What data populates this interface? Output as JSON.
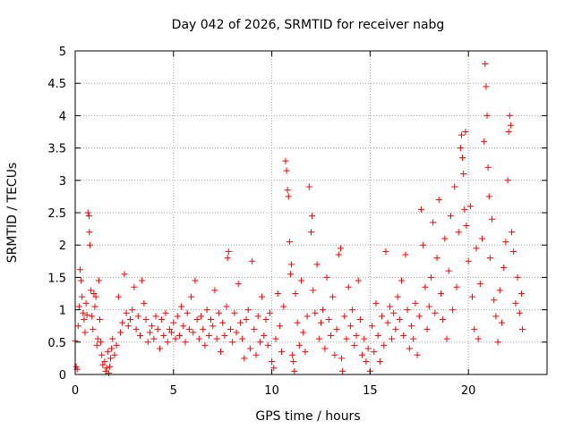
{
  "chart_data": {
    "type": "scatter",
    "title": "Day 042 of 2026, SRMTID for receiver nabg",
    "xlabel": "GPS time / hours",
    "ylabel": "SRMTID / TECUs",
    "xlim": [
      0,
      24
    ],
    "ylim": [
      0,
      5
    ],
    "x_ticks": [
      0,
      5,
      10,
      15,
      20
    ],
    "x_tick_labels": [
      "0",
      "5",
      "10",
      "15",
      "20"
    ],
    "y_ticks": [
      0,
      0.5,
      1,
      1.5,
      2,
      2.5,
      3,
      3.5,
      4,
      4.5,
      5
    ],
    "y_tick_labels": [
      "0",
      "0.5",
      "1",
      "1.5",
      "2",
      "2.5",
      "3",
      "3.5",
      "4",
      "4.5",
      "5"
    ],
    "grid": true,
    "marker": "+",
    "color": "#ff0000",
    "series": [
      {
        "name": "SRMTID",
        "points": [
          [
            0.0,
            0.52
          ],
          [
            0.05,
            0.12
          ],
          [
            0.1,
            0.08
          ],
          [
            0.15,
            0.75
          ],
          [
            0.2,
            1.05
          ],
          [
            0.25,
            1.62
          ],
          [
            0.3,
            1.45
          ],
          [
            0.35,
            1.2
          ],
          [
            0.4,
            0.95
          ],
          [
            0.45,
            0.85
          ],
          [
            0.5,
            0.65
          ],
          [
            0.55,
            1.1
          ],
          [
            0.6,
            0.92
          ],
          [
            0.65,
            2.5
          ],
          [
            0.7,
            2.45
          ],
          [
            0.72,
            2.2
          ],
          [
            0.75,
            2.0
          ],
          [
            0.8,
            1.3
          ],
          [
            0.85,
            0.9
          ],
          [
            0.9,
            0.7
          ],
          [
            0.95,
            1.25
          ],
          [
            1.0,
            1.05
          ],
          [
            1.05,
            1.2
          ],
          [
            1.1,
            0.45
          ],
          [
            1.15,
            0.55
          ],
          [
            1.2,
            1.45
          ],
          [
            1.25,
            0.85
          ],
          [
            1.3,
            0.5
          ],
          [
            1.35,
            0.3
          ],
          [
            1.4,
            0.15
          ],
          [
            1.5,
            0.2
          ],
          [
            1.55,
            0.05
          ],
          [
            1.6,
            0.1
          ],
          [
            1.65,
            0.35
          ],
          [
            1.7,
            0.02
          ],
          [
            1.75,
            0.12
          ],
          [
            1.8,
            0.25
          ],
          [
            1.85,
            0.4
          ],
          [
            1.9,
            0.55
          ],
          [
            2.0,
            0.3
          ],
          [
            2.1,
            0.45
          ],
          [
            2.2,
            1.2
          ],
          [
            2.3,
            0.65
          ],
          [
            2.4,
            0.8
          ],
          [
            2.5,
            1.55
          ],
          [
            2.6,
            0.95
          ],
          [
            2.7,
            0.75
          ],
          [
            2.8,
            0.85
          ],
          [
            2.9,
            1.0
          ],
          [
            3.0,
            1.35
          ],
          [
            3.1,
            0.7
          ],
          [
            3.2,
            0.9
          ],
          [
            3.3,
            0.6
          ],
          [
            3.4,
            1.45
          ],
          [
            3.5,
            1.1
          ],
          [
            3.6,
            0.85
          ],
          [
            3.7,
            0.5
          ],
          [
            3.8,
            0.65
          ],
          [
            3.9,
            0.75
          ],
          [
            4.0,
            0.55
          ],
          [
            4.1,
            0.9
          ],
          [
            4.2,
            0.7
          ],
          [
            4.3,
            0.4
          ],
          [
            4.4,
            0.85
          ],
          [
            4.5,
            0.6
          ],
          [
            4.6,
            0.95
          ],
          [
            4.7,
            0.5
          ],
          [
            4.8,
            0.7
          ],
          [
            4.9,
            0.65
          ],
          [
            5.0,
            0.8
          ],
          [
            5.1,
            0.55
          ],
          [
            5.2,
            0.9
          ],
          [
            5.3,
            0.6
          ],
          [
            5.4,
            1.05
          ],
          [
            5.5,
            0.75
          ],
          [
            5.6,
            0.5
          ],
          [
            5.7,
            0.95
          ],
          [
            5.8,
            0.7
          ],
          [
            5.9,
            1.2
          ],
          [
            6.0,
            0.65
          ],
          [
            6.1,
            1.45
          ],
          [
            6.2,
            0.85
          ],
          [
            6.3,
            0.55
          ],
          [
            6.4,
            0.9
          ],
          [
            6.5,
            0.7
          ],
          [
            6.6,
            0.45
          ],
          [
            6.7,
            1.0
          ],
          [
            6.8,
            0.6
          ],
          [
            6.9,
            0.85
          ],
          [
            7.0,
            0.75
          ],
          [
            7.1,
            1.3
          ],
          [
            7.2,
            0.55
          ],
          [
            7.3,
            0.95
          ],
          [
            7.4,
            0.35
          ],
          [
            7.5,
            0.8
          ],
          [
            7.6,
            0.6
          ],
          [
            7.7,
            1.05
          ],
          [
            7.75,
            1.8
          ],
          [
            7.8,
            1.9
          ],
          [
            7.9,
            0.7
          ],
          [
            8.0,
            0.5
          ],
          [
            8.1,
            0.95
          ],
          [
            8.2,
            0.65
          ],
          [
            8.3,
            1.4
          ],
          [
            8.4,
            0.8
          ],
          [
            8.5,
            0.55
          ],
          [
            8.6,
            0.25
          ],
          [
            8.7,
            0.85
          ],
          [
            8.8,
            1.0
          ],
          [
            8.9,
            0.4
          ],
          [
            9.0,
            1.75
          ],
          [
            9.1,
            0.7
          ],
          [
            9.2,
            0.3
          ],
          [
            9.3,
            0.9
          ],
          [
            9.4,
            0.5
          ],
          [
            9.5,
            1.2
          ],
          [
            9.6,
            0.6
          ],
          [
            9.7,
            0.85
          ],
          [
            9.8,
            0.45
          ],
          [
            9.9,
            0.95
          ],
          [
            10.0,
            0.2
          ],
          [
            10.1,
            0.1
          ],
          [
            10.2,
            0.55
          ],
          [
            10.3,
            1.25
          ],
          [
            10.4,
            0.75
          ],
          [
            10.5,
            0.35
          ],
          [
            10.6,
            1.05
          ],
          [
            10.7,
            3.3
          ],
          [
            10.75,
            3.15
          ],
          [
            10.8,
            2.85
          ],
          [
            10.85,
            2.75
          ],
          [
            10.9,
            2.05
          ],
          [
            10.95,
            1.55
          ],
          [
            11.0,
            1.7
          ],
          [
            11.05,
            0.3
          ],
          [
            11.1,
            0.2
          ],
          [
            11.15,
            0.05
          ],
          [
            11.2,
            1.25
          ],
          [
            11.3,
            0.8
          ],
          [
            11.4,
            0.45
          ],
          [
            11.5,
            1.45
          ],
          [
            11.6,
            0.65
          ],
          [
            11.7,
            0.35
          ],
          [
            11.8,
            0.9
          ],
          [
            11.9,
            2.9
          ],
          [
            12.0,
            2.2
          ],
          [
            12.05,
            2.45
          ],
          [
            12.1,
            1.3
          ],
          [
            12.2,
            0.95
          ],
          [
            12.3,
            1.7
          ],
          [
            12.4,
            0.55
          ],
          [
            12.5,
            0.8
          ],
          [
            12.6,
            1.0
          ],
          [
            12.7,
            0.4
          ],
          [
            12.8,
            1.5
          ],
          [
            12.9,
            0.85
          ],
          [
            13.0,
            0.6
          ],
          [
            13.1,
            1.2
          ],
          [
            13.2,
            0.3
          ],
          [
            13.3,
            0.7
          ],
          [
            13.4,
            1.85
          ],
          [
            13.5,
            1.95
          ],
          [
            13.55,
            0.25
          ],
          [
            13.6,
            0.05
          ],
          [
            13.7,
            0.9
          ],
          [
            13.8,
            0.55
          ],
          [
            13.9,
            1.35
          ],
          [
            14.0,
            0.75
          ],
          [
            14.1,
            1.0
          ],
          [
            14.2,
            0.45
          ],
          [
            14.3,
            0.6
          ],
          [
            14.4,
            1.45
          ],
          [
            14.5,
            0.85
          ],
          [
            14.6,
            0.3
          ],
          [
            14.7,
            0.55
          ],
          [
            14.8,
            0.2
          ],
          [
            14.9,
            0.4
          ],
          [
            15.0,
            0.05
          ],
          [
            15.1,
            0.75
          ],
          [
            15.2,
            0.35
          ],
          [
            15.3,
            1.1
          ],
          [
            15.4,
            0.6
          ],
          [
            15.5,
            0.2
          ],
          [
            15.6,
            0.9
          ],
          [
            15.7,
            0.45
          ],
          [
            15.8,
            1.9
          ],
          [
            15.9,
            0.8
          ],
          [
            16.0,
            1.05
          ],
          [
            16.1,
            0.55
          ],
          [
            16.2,
            0.95
          ],
          [
            16.3,
            0.7
          ],
          [
            16.4,
            1.2
          ],
          [
            16.5,
            0.85
          ],
          [
            16.6,
            1.45
          ],
          [
            16.7,
            0.6
          ],
          [
            16.8,
            1.85
          ],
          [
            16.9,
            1.0
          ],
          [
            17.0,
            0.4
          ],
          [
            17.1,
            0.75
          ],
          [
            17.2,
            0.55
          ],
          [
            17.3,
            1.1
          ],
          [
            17.4,
            0.3
          ],
          [
            17.5,
            0.9
          ],
          [
            17.6,
            2.55
          ],
          [
            17.7,
            2.0
          ],
          [
            17.8,
            1.35
          ],
          [
            17.9,
            0.7
          ],
          [
            18.0,
            1.05
          ],
          [
            18.1,
            1.5
          ],
          [
            18.2,
            2.35
          ],
          [
            18.3,
            0.95
          ],
          [
            18.4,
            1.8
          ],
          [
            18.5,
            2.7
          ],
          [
            18.6,
            1.25
          ],
          [
            18.7,
            0.85
          ],
          [
            18.8,
            2.1
          ],
          [
            18.9,
            0.55
          ],
          [
            19.0,
            1.6
          ],
          [
            19.1,
            2.45
          ],
          [
            19.2,
            1.0
          ],
          [
            19.3,
            2.9
          ],
          [
            19.4,
            1.35
          ],
          [
            19.5,
            2.2
          ],
          [
            19.6,
            3.5
          ],
          [
            19.65,
            3.7
          ],
          [
            19.7,
            3.35
          ],
          [
            19.75,
            3.1
          ],
          [
            19.8,
            2.55
          ],
          [
            19.85,
            3.75
          ],
          [
            19.9,
            2.3
          ],
          [
            20.0,
            1.75
          ],
          [
            20.1,
            2.6
          ],
          [
            20.2,
            1.2
          ],
          [
            20.3,
            0.7
          ],
          [
            20.4,
            1.95
          ],
          [
            20.5,
            0.55
          ],
          [
            20.6,
            1.4
          ],
          [
            20.7,
            2.1
          ],
          [
            20.8,
            3.6
          ],
          [
            20.85,
            4.8
          ],
          [
            20.9,
            4.45
          ],
          [
            20.95,
            4.0
          ],
          [
            21.0,
            3.2
          ],
          [
            21.05,
            2.75
          ],
          [
            21.1,
            1.8
          ],
          [
            21.2,
            2.4
          ],
          [
            21.3,
            1.15
          ],
          [
            21.4,
            0.9
          ],
          [
            21.5,
            0.5
          ],
          [
            21.6,
            1.3
          ],
          [
            21.7,
            0.8
          ],
          [
            21.8,
            1.65
          ],
          [
            21.9,
            2.05
          ],
          [
            22.0,
            3.0
          ],
          [
            22.05,
            3.75
          ],
          [
            22.1,
            4.0
          ],
          [
            22.15,
            3.85
          ],
          [
            22.2,
            2.2
          ],
          [
            22.3,
            1.9
          ],
          [
            22.4,
            1.1
          ],
          [
            22.5,
            1.5
          ],
          [
            22.6,
            0.95
          ],
          [
            22.7,
            1.25
          ],
          [
            22.75,
            0.7
          ]
        ]
      }
    ]
  }
}
